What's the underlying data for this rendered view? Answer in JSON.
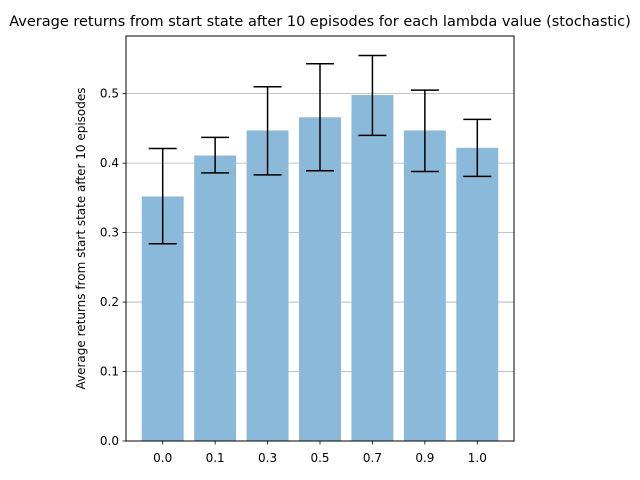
{
  "chart_data": {
    "type": "bar",
    "title": "Average returns from start state after 10 episodes for each lambda value (stochastic)",
    "xlabel": "",
    "ylabel": "Average returns from start state after 10 episodes",
    "categories": [
      "0.0",
      "0.1",
      "0.3",
      "0.5",
      "0.7",
      "0.9",
      "1.0"
    ],
    "values": [
      0.352,
      0.411,
      0.447,
      0.466,
      0.498,
      0.447,
      0.422
    ],
    "error_low": [
      0.284,
      0.386,
      0.383,
      0.389,
      0.44,
      0.388,
      0.381
    ],
    "error_high": [
      0.421,
      0.437,
      0.51,
      0.543,
      0.555,
      0.505,
      0.463
    ],
    "ylim": [
      0.0,
      0.583
    ],
    "yticks": [
      0.0,
      0.1,
      0.2,
      0.3,
      0.4,
      0.5
    ],
    "ytick_labels": [
      "0.0",
      "0.1",
      "0.2",
      "0.3",
      "0.4",
      "0.5"
    ],
    "grid": "horizontal",
    "bar_color": "#8bb9d9",
    "error_color": "#000000"
  }
}
